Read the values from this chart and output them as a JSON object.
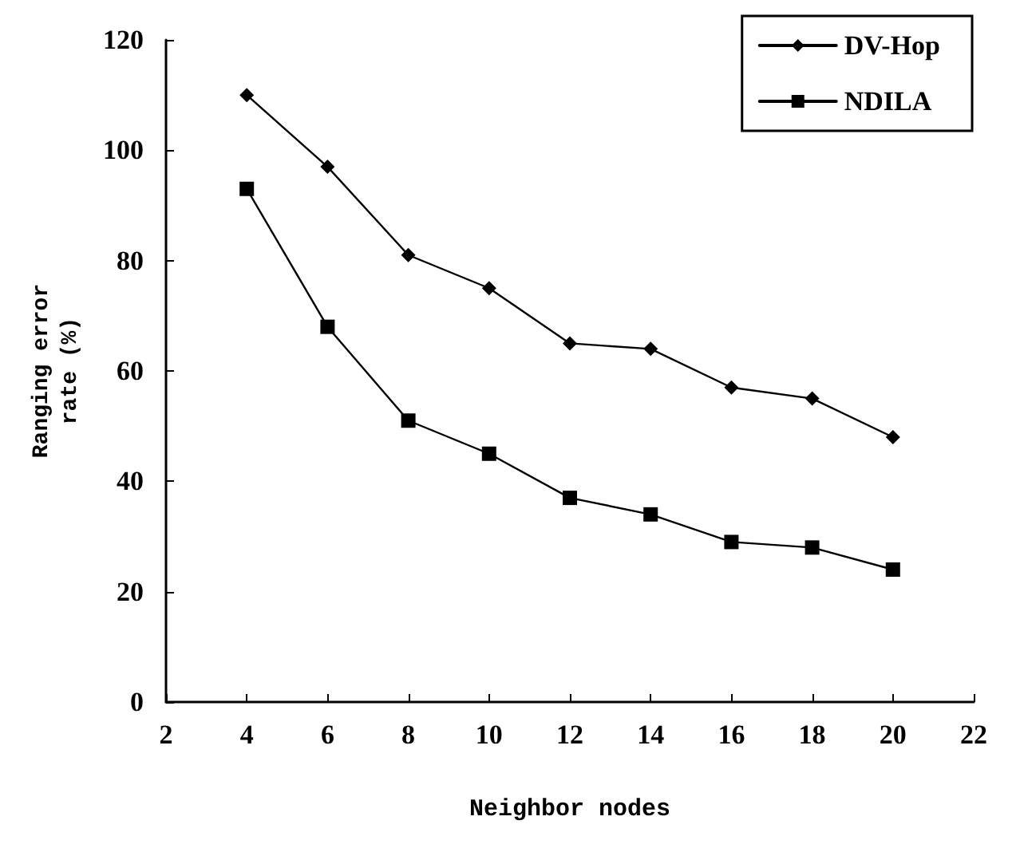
{
  "chart_data": {
    "type": "line",
    "xlabel": "Neighbor nodes",
    "ylabel": "Ranging error\nrate (%)",
    "x": [
      4,
      6,
      8,
      10,
      12,
      14,
      16,
      18,
      20
    ],
    "series": [
      {
        "name": "DV-Hop",
        "color": "#000000",
        "marker": "diamond",
        "values": [
          110,
          97,
          81,
          75,
          65,
          64,
          57,
          55,
          48
        ]
      },
      {
        "name": "NDILA",
        "color": "#000000",
        "marker": "square",
        "values": [
          93,
          68,
          51,
          45,
          37,
          34,
          29,
          28,
          24
        ]
      }
    ],
    "xlim": [
      2,
      22
    ],
    "xticks": [
      2,
      4,
      6,
      8,
      10,
      12,
      14,
      16,
      18,
      20,
      22
    ],
    "ylim": [
      0,
      120
    ],
    "yticks": [
      0,
      20,
      40,
      60,
      80,
      100,
      120
    ],
    "grid": false,
    "legend": "top right",
    "line_style": "solid"
  }
}
